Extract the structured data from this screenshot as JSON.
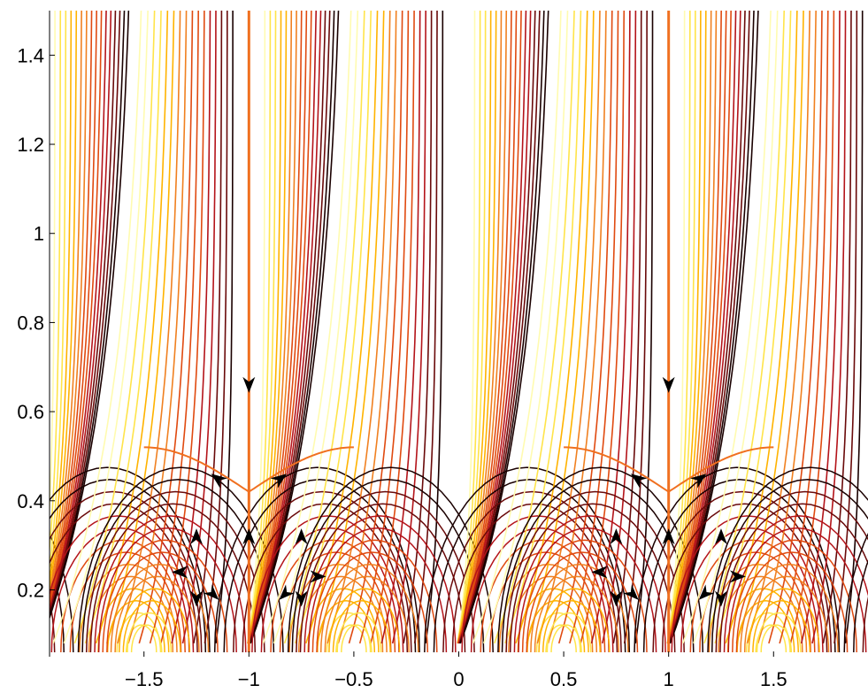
{
  "chart_data": {
    "type": "contour",
    "title": "",
    "xlabel": "",
    "ylabel": "",
    "xlim": [
      -1.95,
      1.95
    ],
    "ylim": [
      0.05,
      1.5
    ],
    "grid": false,
    "legend": "none",
    "x_ticks": [
      -1.5,
      -1,
      -0.5,
      0,
      0.5,
      1,
      1.5
    ],
    "x_tick_labels": [
      "−1.5",
      "−1",
      "−0.5",
      "0",
      "0.5",
      "1",
      "1.5"
    ],
    "y_ticks": [
      0.2,
      0.4,
      0.6,
      0.8,
      1,
      1.2,
      1.4
    ],
    "y_tick_labels": [
      "0.2",
      "0.4",
      "0.6",
      "0.8",
      "1",
      "1.2",
      "1.4"
    ],
    "colormap": [
      "#fffbb0",
      "#ffe44a",
      "#ffb300",
      "#f08020",
      "#e04a10",
      "#b4141a",
      "#6a0a0a",
      "#1a0000"
    ],
    "separatrix_color": "#f07020",
    "period": 1,
    "vertical_separatrices_x": [
      -1,
      1
    ],
    "saddle_points": [
      {
        "x": -1,
        "y": 0.42
      },
      {
        "x": 1,
        "y": 0.42
      },
      {
        "x": -1.25,
        "y": 0.22
      },
      {
        "x": -0.75,
        "y": 0.22
      },
      {
        "x": 0.75,
        "y": 0.22
      },
      {
        "x": 1.25,
        "y": 0.22
      }
    ],
    "arrows": [
      {
        "x": -1,
        "y": 0.66,
        "direction": "down"
      },
      {
        "x": -1,
        "y": 0.32,
        "direction": "up"
      },
      {
        "x": -1.15,
        "y": 0.45,
        "direction": "up-left"
      },
      {
        "x": -0.85,
        "y": 0.45,
        "direction": "up-right"
      },
      {
        "x": -1.25,
        "y": 0.32,
        "direction": "up"
      },
      {
        "x": -1.25,
        "y": 0.18,
        "direction": "down"
      },
      {
        "x": -1.33,
        "y": 0.24,
        "direction": "left"
      },
      {
        "x": -1.17,
        "y": 0.19,
        "direction": "down-right"
      },
      {
        "x": -0.75,
        "y": 0.32,
        "direction": "up"
      },
      {
        "x": -0.75,
        "y": 0.18,
        "direction": "down"
      },
      {
        "x": -0.67,
        "y": 0.23,
        "direction": "right"
      },
      {
        "x": -0.83,
        "y": 0.19,
        "direction": "down-left"
      },
      {
        "x": 1,
        "y": 0.66,
        "direction": "down"
      },
      {
        "x": 1,
        "y": 0.32,
        "direction": "up"
      },
      {
        "x": 0.85,
        "y": 0.45,
        "direction": "up-left"
      },
      {
        "x": 1.15,
        "y": 0.45,
        "direction": "up-right"
      },
      {
        "x": 0.75,
        "y": 0.32,
        "direction": "up"
      },
      {
        "x": 0.75,
        "y": 0.18,
        "direction": "down"
      },
      {
        "x": 0.67,
        "y": 0.24,
        "direction": "left"
      },
      {
        "x": 0.83,
        "y": 0.19,
        "direction": "down-right"
      },
      {
        "x": 1.25,
        "y": 0.32,
        "direction": "up"
      },
      {
        "x": 1.25,
        "y": 0.18,
        "direction": "down"
      },
      {
        "x": 1.33,
        "y": 0.23,
        "direction": "right"
      },
      {
        "x": 1.17,
        "y": 0.19,
        "direction": "down-left"
      }
    ]
  }
}
